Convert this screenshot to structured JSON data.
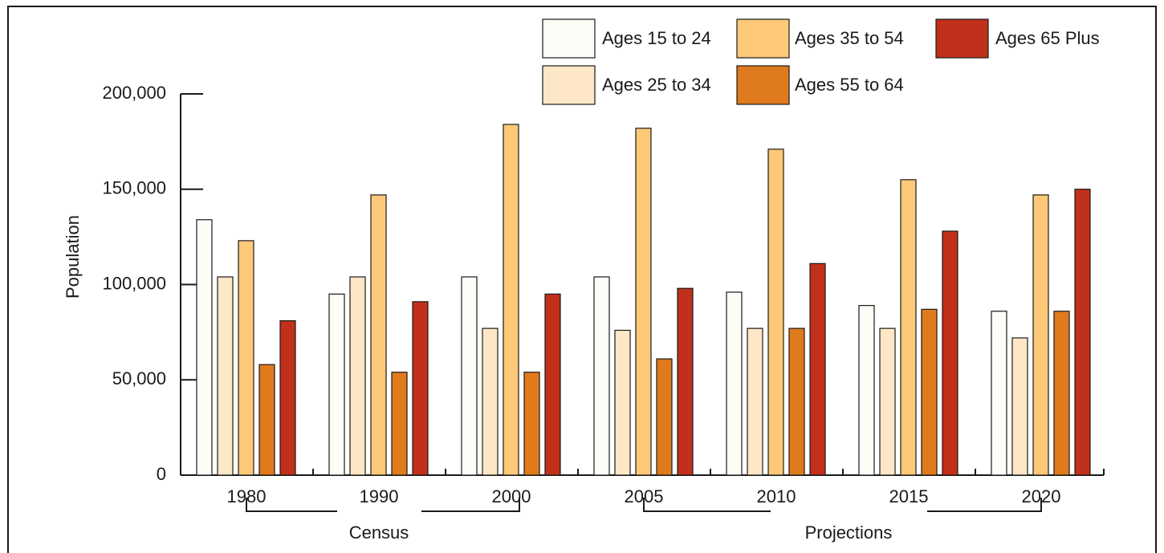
{
  "chart_data": {
    "type": "bar",
    "y_label": "Population",
    "categories": [
      "1980",
      "1990",
      "2000",
      "2005",
      "2010",
      "2015",
      "2020"
    ],
    "series": [
      {
        "name": "Ages 15 to 24",
        "color": "#fdfcf7",
        "values": [
          134000,
          95000,
          104000,
          104000,
          96000,
          89000,
          86000
        ]
      },
      {
        "name": "Ages 25 to 34",
        "color": "#fde7c6",
        "values": [
          104000,
          104000,
          77000,
          76000,
          77000,
          77000,
          72000
        ]
      },
      {
        "name": "Ages 35 to 54",
        "color": "#fdc878",
        "values": [
          123000,
          147000,
          184000,
          182000,
          171000,
          155000,
          147000
        ]
      },
      {
        "name": "Ages 55 to 64",
        "color": "#df7a1d",
        "values": [
          58000,
          54000,
          54000,
          61000,
          77000,
          87000,
          86000
        ]
      },
      {
        "name": "Ages 65 Plus",
        "color": "#c0301a",
        "values": [
          81000,
          91000,
          95000,
          98000,
          111000,
          128000,
          150000
        ]
      }
    ],
    "ylim": [
      0,
      200000
    ],
    "yticks": [
      0,
      {
        "value": 50000,
        "label": "50,000"
      },
      {
        "value": 100000,
        "label": "100,000"
      },
      {
        "value": 150000,
        "label": "150,000"
      },
      {
        "value": 200000,
        "label": "200,000"
      }
    ],
    "annotations": [
      "Census",
      "Projections"
    ]
  }
}
